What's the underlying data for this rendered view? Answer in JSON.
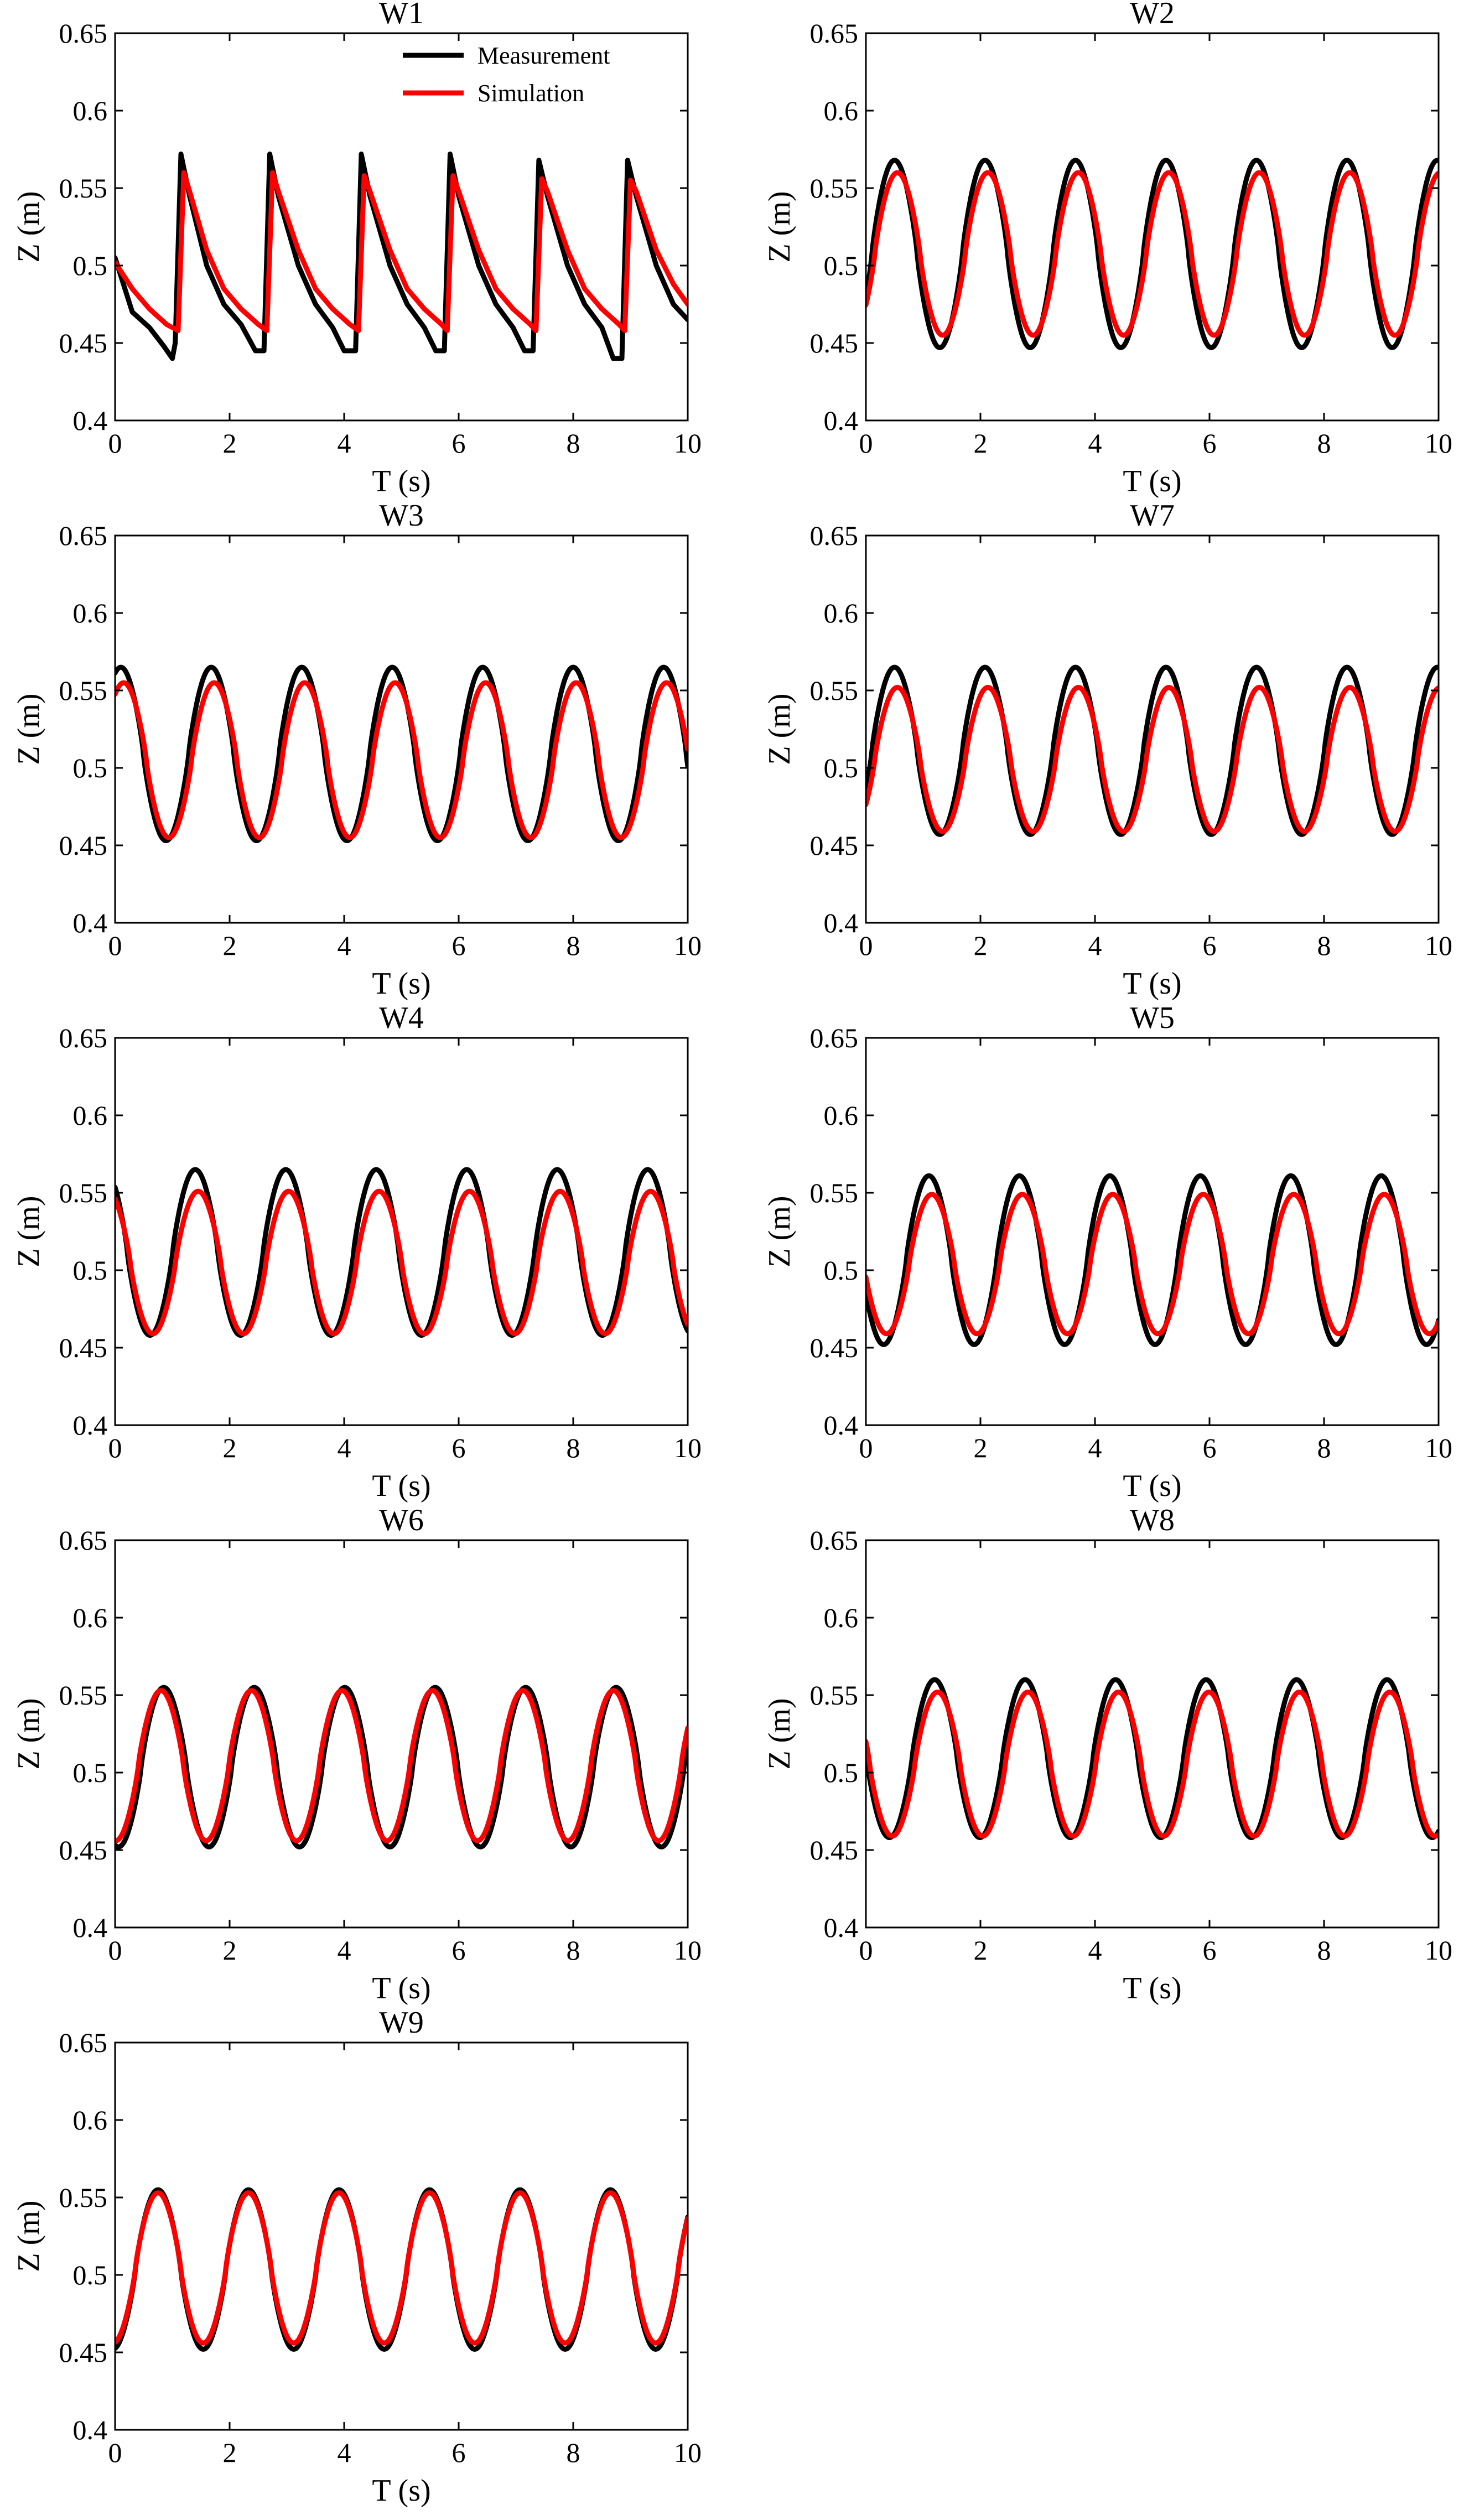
{
  "chart_data": [
    {
      "type": "line",
      "title": "W1",
      "xlabel": "T (s)",
      "ylabel": "Z (m)",
      "xlim": [
        0,
        10
      ],
      "ylim": [
        0.4,
        0.65
      ],
      "xticks": [
        "0",
        "2",
        "4",
        "6",
        "8",
        "10"
      ],
      "yticks": [
        "0.4",
        "0.45",
        "0.5",
        "0.55",
        "0.6",
        "0.65"
      ],
      "grid": false,
      "legend": {
        "placement": "top-right",
        "entries": [
          "Measurement",
          "Simulation"
        ]
      },
      "series": [
        {
          "name": "Measurement",
          "color": "#000000",
          "points": [
            [
              0,
              0.505
            ],
            [
              0.3,
              0.47
            ],
            [
              0.6,
              0.46
            ],
            [
              0.85,
              0.448
            ],
            [
              1.0,
              0.44
            ],
            [
              1.05,
              0.45
            ],
            [
              1.15,
              0.572
            ],
            [
              1.3,
              0.545
            ],
            [
              1.6,
              0.5
            ],
            [
              1.9,
              0.475
            ],
            [
              2.2,
              0.462
            ],
            [
              2.45,
              0.445
            ],
            [
              2.6,
              0.445
            ],
            [
              2.7,
              0.572
            ],
            [
              2.85,
              0.545
            ],
            [
              3.2,
              0.5
            ],
            [
              3.5,
              0.475
            ],
            [
              3.8,
              0.46
            ],
            [
              4.0,
              0.445
            ],
            [
              4.2,
              0.445
            ],
            [
              4.3,
              0.572
            ],
            [
              4.45,
              0.545
            ],
            [
              4.8,
              0.5
            ],
            [
              5.1,
              0.475
            ],
            [
              5.4,
              0.46
            ],
            [
              5.6,
              0.445
            ],
            [
              5.75,
              0.445
            ],
            [
              5.85,
              0.572
            ],
            [
              6.0,
              0.545
            ],
            [
              6.35,
              0.5
            ],
            [
              6.65,
              0.475
            ],
            [
              6.95,
              0.46
            ],
            [
              7.15,
              0.445
            ],
            [
              7.3,
              0.445
            ],
            [
              7.4,
              0.568
            ],
            [
              7.55,
              0.545
            ],
            [
              7.9,
              0.5
            ],
            [
              8.2,
              0.475
            ],
            [
              8.5,
              0.46
            ],
            [
              8.7,
              0.44
            ],
            [
              8.85,
              0.44
            ],
            [
              8.95,
              0.568
            ],
            [
              9.1,
              0.545
            ],
            [
              9.45,
              0.5
            ],
            [
              9.75,
              0.475
            ],
            [
              10,
              0.465
            ]
          ]
        },
        {
          "name": "Simulation",
          "color": "#ff0000",
          "points": [
            [
              0,
              0.502
            ],
            [
              0.3,
              0.485
            ],
            [
              0.6,
              0.472
            ],
            [
              0.9,
              0.462
            ],
            [
              1.1,
              0.458
            ],
            [
              1.2,
              0.56
            ],
            [
              1.3,
              0.548
            ],
            [
              1.6,
              0.51
            ],
            [
              1.9,
              0.485
            ],
            [
              2.2,
              0.472
            ],
            [
              2.5,
              0.462
            ],
            [
              2.65,
              0.458
            ],
            [
              2.75,
              0.56
            ],
            [
              2.85,
              0.548
            ],
            [
              3.2,
              0.51
            ],
            [
              3.5,
              0.485
            ],
            [
              3.8,
              0.472
            ],
            [
              4.1,
              0.462
            ],
            [
              4.25,
              0.458
            ],
            [
              4.35,
              0.558
            ],
            [
              4.45,
              0.548
            ],
            [
              4.8,
              0.51
            ],
            [
              5.1,
              0.485
            ],
            [
              5.4,
              0.472
            ],
            [
              5.7,
              0.462
            ],
            [
              5.8,
              0.458
            ],
            [
              5.9,
              0.558
            ],
            [
              6.0,
              0.548
            ],
            [
              6.35,
              0.51
            ],
            [
              6.65,
              0.485
            ],
            [
              6.95,
              0.472
            ],
            [
              7.25,
              0.462
            ],
            [
              7.35,
              0.458
            ],
            [
              7.45,
              0.556
            ],
            [
              7.55,
              0.548
            ],
            [
              7.9,
              0.51
            ],
            [
              8.2,
              0.485
            ],
            [
              8.5,
              0.472
            ],
            [
              8.8,
              0.462
            ],
            [
              8.9,
              0.458
            ],
            [
              9.0,
              0.555
            ],
            [
              9.1,
              0.548
            ],
            [
              9.45,
              0.51
            ],
            [
              9.75,
              0.488
            ],
            [
              10,
              0.475
            ]
          ]
        }
      ]
    },
    {
      "type": "line",
      "title": "W2",
      "xlabel": "T (s)",
      "ylabel": "Z (m)",
      "xlim": [
        0,
        10
      ],
      "ylim": [
        0.4,
        0.65
      ],
      "xticks": [
        "0",
        "2",
        "4",
        "6",
        "8",
        "10"
      ],
      "yticks": [
        "0.4",
        "0.45",
        "0.5",
        "0.55",
        "0.6",
        "0.65"
      ],
      "grid": false,
      "series": [
        {
          "name": "Measurement",
          "color": "#000000",
          "wave": {
            "period": 1.58,
            "peak_t": 0.5,
            "max": 0.568,
            "min": 0.447
          }
        },
        {
          "name": "Simulation",
          "color": "#ff0000",
          "wave": {
            "period": 1.58,
            "peak_t": 0.55,
            "max": 0.56,
            "min": 0.455
          }
        }
      ]
    },
    {
      "type": "line",
      "title": "W3",
      "xlabel": "T (s)",
      "ylabel": "Z (m)",
      "xlim": [
        0,
        10
      ],
      "ylim": [
        0.4,
        0.65
      ],
      "xticks": [
        "0",
        "2",
        "4",
        "6",
        "8",
        "10"
      ],
      "yticks": [
        "0.4",
        "0.45",
        "0.5",
        "0.55",
        "0.6",
        "0.65"
      ],
      "grid": false,
      "series": [
        {
          "name": "Measurement",
          "color": "#000000",
          "wave": {
            "period": 1.58,
            "peak_t": 0.1,
            "max": 0.565,
            "min": 0.453
          }
        },
        {
          "name": "Simulation",
          "color": "#ff0000",
          "wave": {
            "period": 1.58,
            "peak_t": 0.15,
            "max": 0.555,
            "min": 0.455
          }
        }
      ]
    },
    {
      "type": "line",
      "title": "W7",
      "xlabel": "T (s)",
      "ylabel": "Z (m)",
      "xlim": [
        0,
        10
      ],
      "ylim": [
        0.4,
        0.65
      ],
      "xticks": [
        "0",
        "2",
        "4",
        "6",
        "8",
        "10"
      ],
      "yticks": [
        "0.4",
        "0.45",
        "0.5",
        "0.55",
        "0.6",
        "0.65"
      ],
      "grid": false,
      "series": [
        {
          "name": "Measurement",
          "color": "#000000",
          "wave": {
            "period": 1.58,
            "peak_t": 0.5,
            "max": 0.565,
            "min": 0.457
          }
        },
        {
          "name": "Simulation",
          "color": "#ff0000",
          "wave": {
            "period": 1.58,
            "peak_t": 0.55,
            "max": 0.552,
            "min": 0.459
          }
        }
      ]
    },
    {
      "type": "line",
      "title": "W4",
      "xlabel": "T (s)",
      "ylabel": "Z (m)",
      "xlim": [
        0,
        10
      ],
      "ylim": [
        0.4,
        0.65
      ],
      "xticks": [
        "0",
        "2",
        "4",
        "6",
        "8",
        "10"
      ],
      "yticks": [
        "0.4",
        "0.45",
        "0.5",
        "0.55",
        "0.6",
        "0.65"
      ],
      "grid": false,
      "series": [
        {
          "name": "Measurement",
          "color": "#000000",
          "wave": {
            "period": 1.58,
            "peak_t": 1.4,
            "max": 0.565,
            "min": 0.458
          }
        },
        {
          "name": "Simulation",
          "color": "#ff0000",
          "wave": {
            "period": 1.58,
            "peak_t": 1.45,
            "max": 0.551,
            "min": 0.459
          }
        }
      ]
    },
    {
      "type": "line",
      "title": "W5",
      "xlabel": "T (s)",
      "ylabel": "Z (m)",
      "xlim": [
        0,
        10
      ],
      "ylim": [
        0.4,
        0.65
      ],
      "xticks": [
        "0",
        "2",
        "4",
        "6",
        "8",
        "10"
      ],
      "yticks": [
        "0.4",
        "0.45",
        "0.5",
        "0.55",
        "0.6",
        "0.65"
      ],
      "grid": false,
      "series": [
        {
          "name": "Measurement",
          "color": "#000000",
          "wave": {
            "period": 1.58,
            "peak_t": 1.1,
            "max": 0.561,
            "min": 0.452
          }
        },
        {
          "name": "Simulation",
          "color": "#ff0000",
          "wave": {
            "period": 1.58,
            "peak_t": 1.15,
            "max": 0.549,
            "min": 0.459
          }
        }
      ]
    },
    {
      "type": "line",
      "title": "W6",
      "xlabel": "T (s)",
      "ylabel": "Z (m)",
      "xlim": [
        0,
        10
      ],
      "ylim": [
        0.4,
        0.65
      ],
      "xticks": [
        "0",
        "2",
        "4",
        "6",
        "8",
        "10"
      ],
      "yticks": [
        "0.4",
        "0.45",
        "0.5",
        "0.55",
        "0.6",
        "0.65"
      ],
      "grid": false,
      "series": [
        {
          "name": "Measurement",
          "color": "#000000",
          "wave": {
            "period": 1.58,
            "peak_t": 0.85,
            "max": 0.555,
            "min": 0.452
          }
        },
        {
          "name": "Simulation",
          "color": "#ff0000",
          "wave": {
            "period": 1.58,
            "peak_t": 0.8,
            "max": 0.553,
            "min": 0.456
          }
        }
      ]
    },
    {
      "type": "line",
      "title": "W8",
      "xlabel": "T (s)",
      "ylabel": "Z (m)",
      "xlim": [
        0,
        10
      ],
      "ylim": [
        0.4,
        0.65
      ],
      "xticks": [
        "0",
        "2",
        "4",
        "6",
        "8",
        "10"
      ],
      "yticks": [
        "0.4",
        "0.45",
        "0.5",
        "0.55",
        "0.6",
        "0.65"
      ],
      "grid": false,
      "series": [
        {
          "name": "Measurement",
          "color": "#000000",
          "wave": {
            "period": 1.58,
            "peak_t": 1.2,
            "max": 0.56,
            "min": 0.458
          }
        },
        {
          "name": "Simulation",
          "color": "#ff0000",
          "wave": {
            "period": 1.58,
            "peak_t": 1.25,
            "max": 0.552,
            "min": 0.459
          }
        }
      ]
    },
    {
      "type": "line",
      "title": "W9",
      "xlabel": "T (s)",
      "ylabel": "Z (m)",
      "xlim": [
        0,
        10
      ],
      "ylim": [
        0.4,
        0.65
      ],
      "xticks": [
        "0",
        "2",
        "4",
        "6",
        "8",
        "10"
      ],
      "yticks": [
        "0.4",
        "0.45",
        "0.5",
        "0.55",
        "0.6",
        "0.65"
      ],
      "grid": false,
      "series": [
        {
          "name": "Measurement",
          "color": "#000000",
          "wave": {
            "period": 1.58,
            "peak_t": 0.75,
            "max": 0.555,
            "min": 0.452
          }
        },
        {
          "name": "Simulation",
          "color": "#ff0000",
          "wave": {
            "period": 1.58,
            "peak_t": 0.75,
            "max": 0.553,
            "min": 0.456
          }
        }
      ]
    }
  ]
}
